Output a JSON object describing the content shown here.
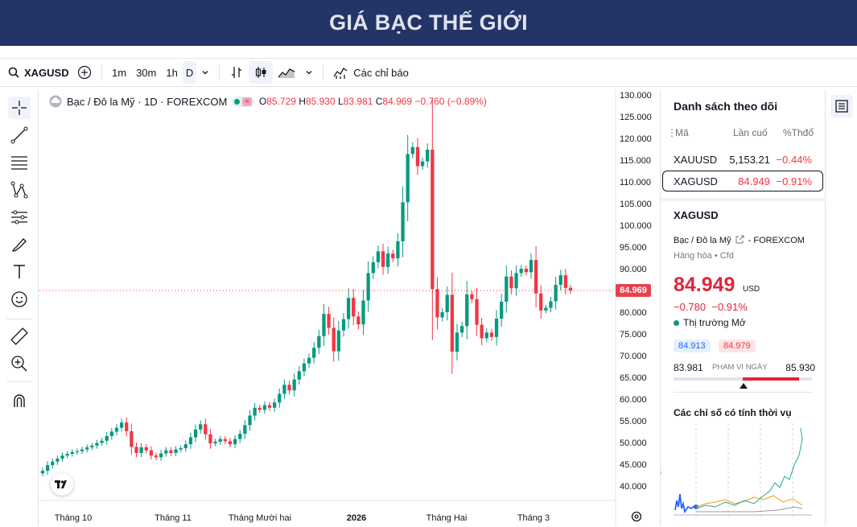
{
  "banner": {
    "title": "GIÁ BẠC THẾ GIỚI"
  },
  "toolbar": {
    "symbol": "XAGUSD",
    "intervals": [
      "1m",
      "30m",
      "1h",
      "D"
    ],
    "indicators_label": "Các chỉ báo"
  },
  "legend": {
    "title": "Bạc / Đô la Mỹ · 1D · FOREXCOM",
    "o_label": "O",
    "o_value": "85.729",
    "h_label": "H",
    "h_value": "85.930",
    "l_label": "L",
    "l_value": "83.981",
    "c_label": "C",
    "c_value": "84.969",
    "change": "−0.760 (−0.89%)"
  },
  "price_tag": "84.969",
  "chart_data": {
    "type": "candlestick",
    "y_ticks": [
      "130.000",
      "125.000",
      "120.000",
      "115.000",
      "110.000",
      "105.000",
      "100.000",
      "95.000",
      "90.000",
      "85.000",
      "80.000",
      "75.000",
      "70.000",
      "65.000",
      "60.000",
      "55.000",
      "50.000",
      "45.000",
      "40.000"
    ],
    "ylim": [
      40,
      130
    ],
    "x_labels": [
      "Tháng 10",
      "Tháng 11",
      "Tháng Mười hai",
      "2026",
      "Tháng Hai",
      "Tháng 3"
    ],
    "current_price": 84.969,
    "closes": [
      43.5,
      44.8,
      45.6,
      46.3,
      47.0,
      47.4,
      47.8,
      48.0,
      48.4,
      48.9,
      49.3,
      49.9,
      50.4,
      51.5,
      52.5,
      53.4,
      54.6,
      52.6,
      49.0,
      47.6,
      48.9,
      48.2,
      47.0,
      46.6,
      47.5,
      48.2,
      47.6,
      48.4,
      48.7,
      49.6,
      51.2,
      53.0,
      54.2,
      51.9,
      49.8,
      50.2,
      50.8,
      50.3,
      49.6,
      50.8,
      52.0,
      54.0,
      56.2,
      58.0,
      57.5,
      58.6,
      58.0,
      59.2,
      61.2,
      63.3,
      62.0,
      64.5,
      66.4,
      68.2,
      69.5,
      71.8,
      74.5,
      79.6,
      76.4,
      71.0,
      75.8,
      78.4,
      83.3,
      79.0,
      77.2,
      82.7,
      89.0,
      91.5,
      94.0,
      90.4,
      93.5,
      92.4,
      96.3,
      105.3,
      116.4,
      118.0,
      113.6,
      114.7,
      117.4,
      85.3,
      78.8,
      80.0,
      84.0,
      70.9,
      75.3,
      76.8,
      84.1,
      83.0,
      77.1,
      74.0,
      75.3,
      74.3,
      78.5,
      82.4,
      88.2,
      85.5,
      89.0,
      90.0,
      89.2,
      92.0,
      84.3,
      80.4,
      81.0,
      82.5,
      86.3,
      88.5,
      85.6,
      84.969
    ],
    "watchlist": {
      "title": "Danh sách theo dõi",
      "headers": [
        "Mã",
        "Lần cuố",
        "%Thđổ"
      ],
      "rows": [
        {
          "symbol": "XAUUSD",
          "last": "5,153.21",
          "chg": "−0.44%"
        },
        {
          "symbol": "XAGUSD",
          "last": "84.949",
          "chg": "−0.91%"
        }
      ]
    }
  },
  "details": {
    "symbol": "XAGUSD",
    "name": "Bạc / Đô la Mỹ",
    "exchange": "FOREXCOM",
    "category": "Hàng hóa",
    "subtype": "Cfd",
    "price": "84.949",
    "unit": "USD",
    "change": "−0.780",
    "change_pct": "−0.91%",
    "market_status": "Thị trường Mở",
    "bid": "84.913",
    "ask": "84.979",
    "day_low": "83.981",
    "day_high": "85.930",
    "range_label": "PHẠM VI NGÀY",
    "seasonal_title": "Các chỉ số có tính thời vụ"
  },
  "colors": {
    "up": "#089981",
    "down": "#f23645",
    "banner": "#223566"
  }
}
